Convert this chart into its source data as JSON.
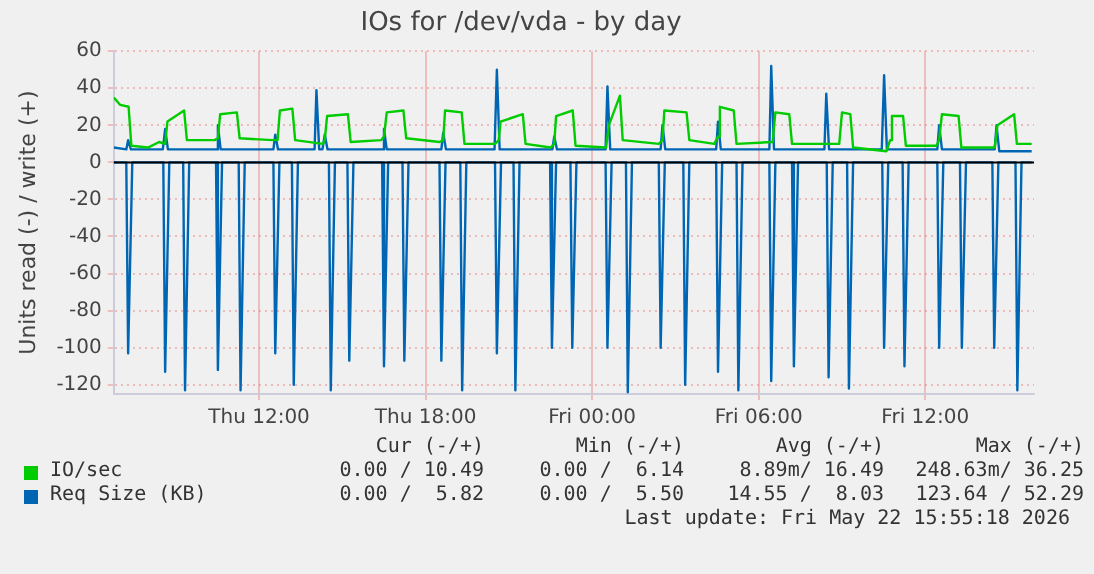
{
  "chart_data": {
    "type": "line",
    "title": "IOs for /dev/vda - by day",
    "ylabel": "Units read (-) / write (+)",
    "xlim": [
      "2026-05-21T06:46",
      "2026-05-22T15:55"
    ],
    "xticks": [
      {
        "value": "2026-05-21T12:00",
        "label": "Thu 12:00"
      },
      {
        "value": "2026-05-21T18:00",
        "label": "Thu 18:00"
      },
      {
        "value": "2026-05-22T00:00",
        "label": "Fri 00:00"
      },
      {
        "value": "2026-05-22T06:00",
        "label": "Fri 06:00"
      },
      {
        "value": "2026-05-22T12:00",
        "label": "Fri 12:00"
      }
    ],
    "ylim": [
      -125,
      60
    ],
    "yticks": [
      -120,
      -100,
      -80,
      -60,
      -40,
      -20,
      0,
      20,
      40,
      60
    ],
    "grid": true,
    "legend": "bottom",
    "marker": "none",
    "line_style": "solid",
    "ref_lines": [
      {
        "axis": "y",
        "value": 0,
        "color": "#000000"
      }
    ],
    "series": [
      {
        "name": "IO/sec",
        "color": "#00cc00",
        "x": [
          "2026-05-21T06:46",
          "2026-05-21T07:00",
          "2026-05-21T07:18",
          "2026-05-21T07:24",
          "2026-05-21T08:00",
          "2026-05-21T08:24",
          "2026-05-21T08:37",
          "2026-05-21T08:42",
          "2026-05-21T09:18",
          "2026-05-21T09:24",
          "2026-05-21T10:24",
          "2026-05-21T10:31",
          "2026-05-21T10:36",
          "2026-05-21T11:12",
          "2026-05-21T11:18",
          "2026-05-21T12:30",
          "2026-05-21T12:40",
          "2026-05-21T12:45",
          "2026-05-21T13:12",
          "2026-05-21T13:18",
          "2026-05-21T14:18",
          "2026-05-21T14:22",
          "2026-05-21T14:27",
          "2026-05-21T15:12",
          "2026-05-21T15:18",
          "2026-05-21T16:24",
          "2026-05-21T16:30",
          "2026-05-21T16:36",
          "2026-05-21T17:12",
          "2026-05-21T17:18",
          "2026-05-21T18:30",
          "2026-05-21T18:38",
          "2026-05-21T18:42",
          "2026-05-21T19:18",
          "2026-05-21T19:24",
          "2026-05-21T20:30",
          "2026-05-21T20:38",
          "2026-05-21T20:42",
          "2026-05-21T21:30",
          "2026-05-21T21:36",
          "2026-05-21T22:30",
          "2026-05-21T22:38",
          "2026-05-21T22:42",
          "2026-05-21T23:18",
          "2026-05-21T23:24",
          "2026-05-22T00:30",
          "2026-05-22T00:36",
          "2026-05-22T01:00",
          "2026-05-22T01:06",
          "2026-05-22T02:24",
          "2026-05-22T02:32",
          "2026-05-22T02:36",
          "2026-05-22T03:24",
          "2026-05-22T03:30",
          "2026-05-22T04:24",
          "2026-05-22T04:32",
          "2026-05-22T04:36",
          "2026-05-22T05:06",
          "2026-05-22T05:12",
          "2026-05-22T06:30",
          "2026-05-22T06:36",
          "2026-05-22T07:06",
          "2026-05-22T07:12",
          "2026-05-22T08:54",
          "2026-05-22T09:00",
          "2026-05-22T09:18",
          "2026-05-22T09:24",
          "2026-05-22T10:36",
          "2026-05-22T10:44",
          "2026-05-22T10:48",
          "2026-05-22T11:12",
          "2026-05-22T11:18",
          "2026-05-22T12:24",
          "2026-05-22T12:30",
          "2026-05-22T12:36",
          "2026-05-22T13:12",
          "2026-05-22T13:18",
          "2026-05-22T14:30",
          "2026-05-22T14:36",
          "2026-05-22T15:12",
          "2026-05-22T15:18",
          "2026-05-22T15:50"
        ],
        "values": [
          35,
          31,
          30,
          9,
          8,
          11,
          10,
          22,
          28,
          12,
          12,
          13,
          26,
          27,
          13,
          12,
          12,
          28,
          29,
          12,
          10,
          12,
          25,
          26,
          11,
          12,
          14,
          27,
          28,
          13,
          11,
          12,
          28,
          27,
          10,
          10,
          12,
          22,
          26,
          10,
          8,
          10,
          25,
          28,
          9,
          8,
          20,
          36,
          12,
          10,
          12,
          28,
          27,
          12,
          10,
          14,
          30,
          28,
          10,
          11,
          27,
          26,
          10,
          10,
          27,
          26,
          8,
          6,
          12,
          25,
          25,
          9,
          9,
          12,
          26,
          25,
          8,
          8,
          20,
          26,
          10,
          10
        ]
      },
      {
        "name": "Req Size (KB)",
        "color": "#0066b3",
        "x": [
          "2026-05-21T06:46",
          "2026-05-21T07:13",
          "2026-05-21T07:17",
          "2026-05-21T07:23",
          "2026-05-21T08:32",
          "2026-05-21T08:37",
          "2026-05-21T08:43",
          "2026-05-21T10:27",
          "2026-05-21T10:31",
          "2026-05-21T10:37",
          "2026-05-21T12:31",
          "2026-05-21T12:35",
          "2026-05-21T12:41",
          "2026-05-21T14:00",
          "2026-05-21T14:04",
          "2026-05-21T14:10",
          "2026-05-21T14:17",
          "2026-05-21T14:22",
          "2026-05-21T14:28",
          "2026-05-21T16:26",
          "2026-05-21T16:30",
          "2026-05-21T16:36",
          "2026-05-21T18:34",
          "2026-05-21T18:38",
          "2026-05-21T18:44",
          "2026-05-21T20:29",
          "2026-05-21T20:34",
          "2026-05-21T20:40",
          "2026-05-21T22:34",
          "2026-05-21T22:38",
          "2026-05-21T22:44",
          "2026-05-22T00:29",
          "2026-05-22T00:33",
          "2026-05-22T00:39",
          "2026-05-22T02:28",
          "2026-05-22T02:32",
          "2026-05-22T02:38",
          "2026-05-22T04:28",
          "2026-05-22T04:32",
          "2026-05-22T04:38",
          "2026-05-22T06:23",
          "2026-05-22T06:27",
          "2026-05-22T06:33",
          "2026-05-22T08:22",
          "2026-05-22T08:26",
          "2026-05-22T08:32",
          "2026-05-22T10:26",
          "2026-05-22T10:31",
          "2026-05-22T10:37",
          "2026-05-22T12:26",
          "2026-05-22T12:30",
          "2026-05-22T12:36",
          "2026-05-22T14:30",
          "2026-05-22T14:34",
          "2026-05-22T14:40",
          "2026-05-22T15:50"
        ],
        "values": [
          8,
          7,
          12,
          7,
          7,
          18,
          7,
          7,
          20,
          7,
          7,
          15,
          7,
          7,
          39,
          7,
          7,
          15,
          7,
          7,
          18,
          7,
          7,
          16,
          7,
          7,
          50,
          7,
          7,
          14,
          7,
          7,
          41,
          7,
          7,
          20,
          7,
          7,
          22,
          7,
          7,
          52,
          7,
          7,
          37,
          7,
          7,
          47,
          7,
          7,
          20,
          7,
          7,
          20,
          6,
          6
        ]
      },
      {
        "color": "#0066b3",
        "x": [
          "2026-05-21T06:46",
          "2026-05-21T07:13",
          "2026-05-21T07:17",
          "2026-05-21T07:26",
          "2026-05-21T08:33",
          "2026-05-21T08:37",
          "2026-05-21T08:46",
          "2026-05-21T09:16",
          "2026-05-21T09:20",
          "2026-05-21T09:29",
          "2026-05-21T10:27",
          "2026-05-21T10:31",
          "2026-05-21T10:40",
          "2026-05-21T11:16",
          "2026-05-21T11:20",
          "2026-05-21T11:29",
          "2026-05-21T12:31",
          "2026-05-21T12:35",
          "2026-05-21T12:44",
          "2026-05-21T13:11",
          "2026-05-21T13:15",
          "2026-05-21T13:24",
          "2026-05-21T14:31",
          "2026-05-21T14:35",
          "2026-05-21T14:44",
          "2026-05-21T15:11",
          "2026-05-21T15:15",
          "2026-05-21T15:24",
          "2026-05-21T16:26",
          "2026-05-21T16:30",
          "2026-05-21T16:39",
          "2026-05-21T17:10",
          "2026-05-21T17:14",
          "2026-05-21T17:23",
          "2026-05-21T18:30",
          "2026-05-21T18:34",
          "2026-05-21T18:43",
          "2026-05-21T19:15",
          "2026-05-21T19:19",
          "2026-05-21T19:28",
          "2026-05-21T20:30",
          "2026-05-21T20:34",
          "2026-05-21T20:43",
          "2026-05-21T21:10",
          "2026-05-21T21:14",
          "2026-05-21T21:23",
          "2026-05-21T22:29",
          "2026-05-21T22:33",
          "2026-05-21T22:42",
          "2026-05-21T23:13",
          "2026-05-21T23:17",
          "2026-05-21T23:26",
          "2026-05-22T00:29",
          "2026-05-22T00:33",
          "2026-05-22T00:42",
          "2026-05-22T01:13",
          "2026-05-22T01:17",
          "2026-05-22T01:26",
          "2026-05-22T02:24",
          "2026-05-22T02:28",
          "2026-05-22T02:37",
          "2026-05-22T03:17",
          "2026-05-22T03:21",
          "2026-05-22T03:30",
          "2026-05-22T04:28",
          "2026-05-22T04:32",
          "2026-05-22T04:41",
          "2026-05-22T05:12",
          "2026-05-22T05:16",
          "2026-05-22T05:25",
          "2026-05-22T06:23",
          "2026-05-22T06:27",
          "2026-05-22T06:36",
          "2026-05-22T07:12",
          "2026-05-22T07:16",
          "2026-05-22T07:25",
          "2026-05-22T08:27",
          "2026-05-22T08:31",
          "2026-05-22T08:40",
          "2026-05-22T09:11",
          "2026-05-22T09:15",
          "2026-05-22T09:24",
          "2026-05-22T10:27",
          "2026-05-22T10:31",
          "2026-05-22T10:40",
          "2026-05-22T11:11",
          "2026-05-22T11:15",
          "2026-05-22T11:24",
          "2026-05-22T12:26",
          "2026-05-22T12:30",
          "2026-05-22T12:39",
          "2026-05-22T13:15",
          "2026-05-22T13:19",
          "2026-05-22T13:28",
          "2026-05-22T14:25",
          "2026-05-22T14:29",
          "2026-05-22T14:38",
          "2026-05-22T15:15",
          "2026-05-22T15:19",
          "2026-05-22T15:28",
          "2026-05-22T15:50"
        ],
        "values": [
          0,
          0,
          -103,
          0,
          0,
          -113,
          0,
          0,
          -123,
          0,
          0,
          -112,
          0,
          0,
          -123,
          0,
          0,
          -103,
          0,
          0,
          -120,
          0,
          0,
          -123,
          0,
          0,
          -107,
          0,
          0,
          -110,
          0,
          0,
          -107,
          0,
          0,
          -107,
          0,
          0,
          -123,
          0,
          0,
          -103,
          0,
          0,
          -123,
          0,
          0,
          -100,
          0,
          0,
          -100,
          0,
          0,
          -100,
          0,
          0,
          -124,
          0,
          0,
          -100,
          0,
          0,
          -120,
          0,
          0,
          -113,
          0,
          0,
          -123,
          0,
          0,
          -118,
          0,
          0,
          -110,
          0,
          0,
          -116,
          0,
          0,
          -122,
          0,
          0,
          -100,
          0,
          0,
          -110,
          0,
          0,
          -100,
          0,
          0,
          -100,
          0,
          0,
          -100,
          0,
          0,
          -123,
          0,
          0
        ]
      }
    ],
    "annotations": [
      "Cur (-/+)",
      "Min (-/+)",
      "Avg (-/+)",
      "Max (-/+)",
      "0.00 / 10.49",
      "0.00 /  6.14",
      "8.89m/ 16.49",
      "248.63m/ 36.25",
      "0.00 /  5.82",
      "0.00 /  5.50",
      "14.55 /  8.03",
      "123.64 / 52.29",
      "Last update: Fri May 22 15:55:18 2026"
    ]
  }
}
